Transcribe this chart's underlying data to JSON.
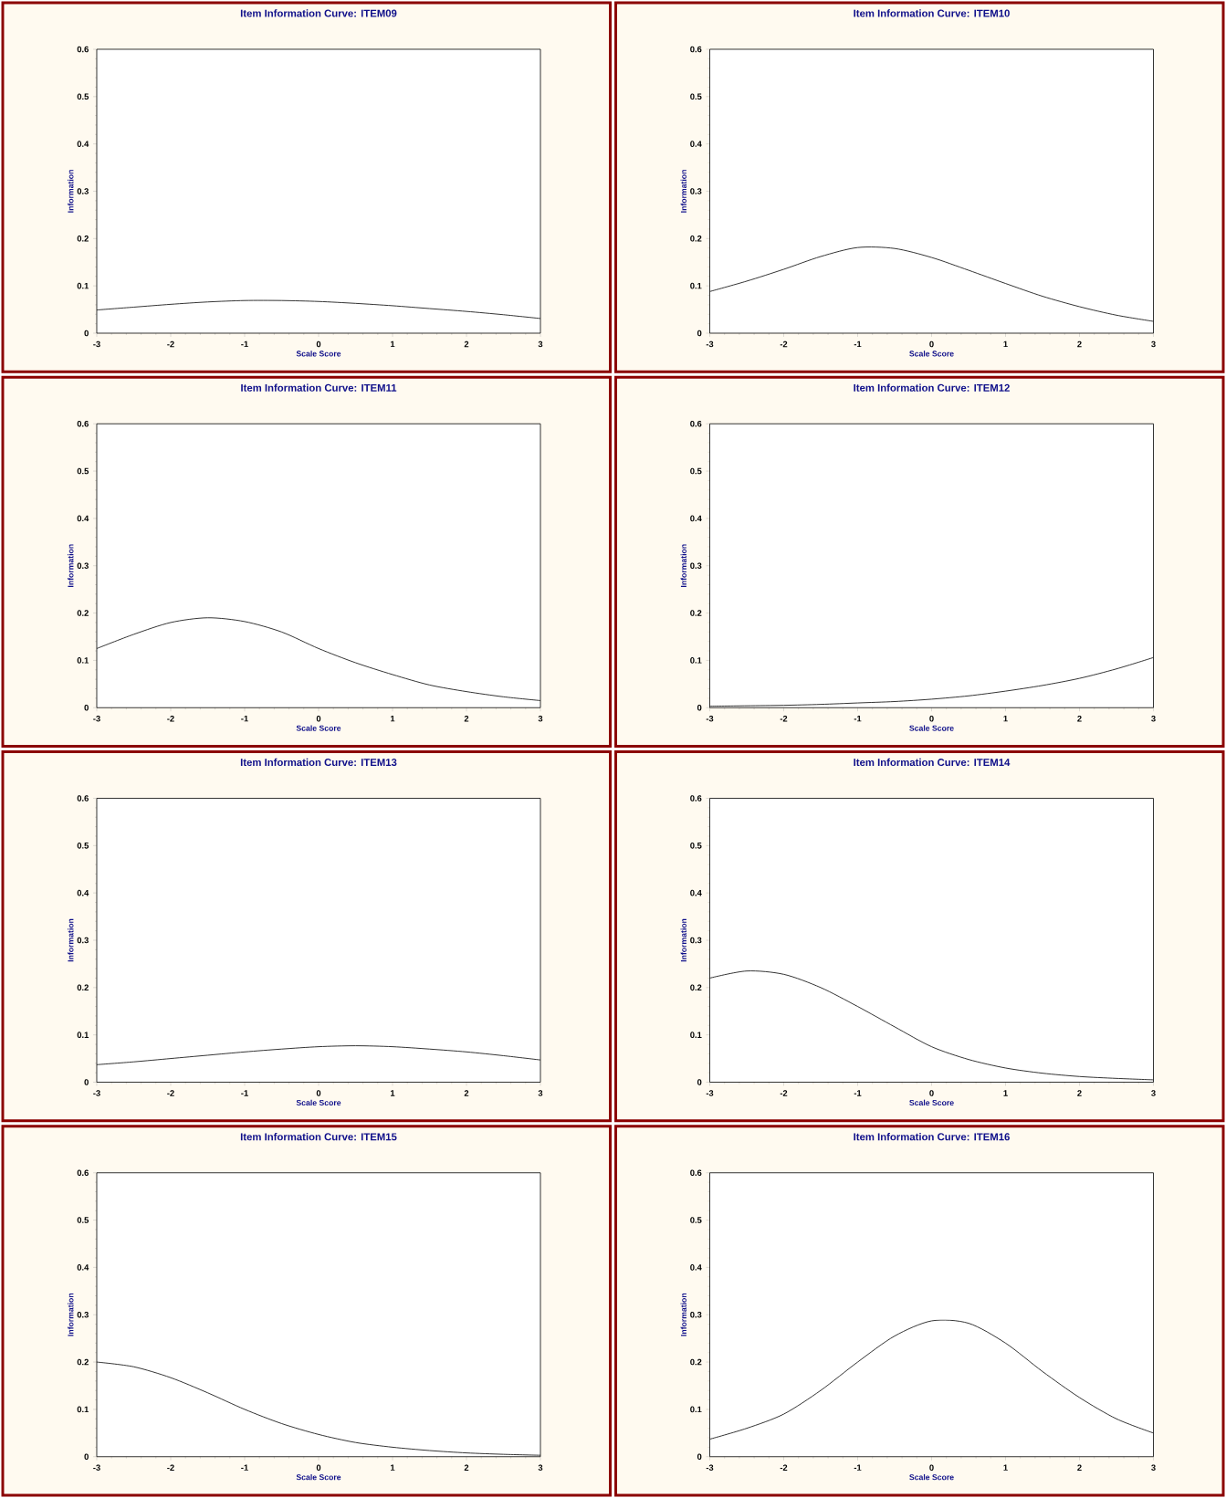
{
  "chart_data": [
    {
      "type": "line",
      "title": "Item Information Curve: ITEM09",
      "xlabel": "Scale Score",
      "ylabel": "Information",
      "color": "#000000",
      "xlim": [
        -3,
        3
      ],
      "ylim": [
        0,
        0.6
      ],
      "xticks": [
        -3,
        -2,
        -1,
        0,
        1,
        2,
        3
      ],
      "yticks": [
        0,
        0.1,
        0.2,
        0.3,
        0.4,
        0.5,
        0.6
      ],
      "x": [
        -3,
        -2.5,
        -2,
        -1.5,
        -1,
        -0.5,
        0,
        0.5,
        1,
        1.5,
        2,
        2.5,
        3
      ],
      "values": [
        0.049,
        0.055,
        0.061,
        0.066,
        0.069,
        0.069,
        0.067,
        0.063,
        0.058,
        0.052,
        0.046,
        0.039,
        0.031
      ]
    },
    {
      "type": "line",
      "title": "Item Information Curve: ITEM10",
      "xlabel": "Scale Score",
      "ylabel": "Information",
      "color": "#000000",
      "xlim": [
        -3,
        3
      ],
      "ylim": [
        0,
        0.6
      ],
      "xticks": [
        -3,
        -2,
        -1,
        0,
        1,
        2,
        3
      ],
      "yticks": [
        0,
        0.1,
        0.2,
        0.3,
        0.4,
        0.5,
        0.6
      ],
      "x": [
        -3,
        -2.5,
        -2,
        -1.5,
        -1,
        -0.5,
        0,
        0.5,
        1,
        1.5,
        2,
        2.5,
        3
      ],
      "values": [
        0.088,
        0.11,
        0.135,
        0.162,
        0.181,
        0.179,
        0.16,
        0.133,
        0.105,
        0.078,
        0.056,
        0.038,
        0.025
      ]
    },
    {
      "type": "line",
      "title": "Item Information Curve: ITEM11",
      "xlabel": "Scale Score",
      "ylabel": "Information",
      "color": "#000000",
      "xlim": [
        -3,
        3
      ],
      "ylim": [
        0,
        0.6
      ],
      "xticks": [
        -3,
        -2,
        -1,
        0,
        1,
        2,
        3
      ],
      "yticks": [
        0,
        0.1,
        0.2,
        0.3,
        0.4,
        0.5,
        0.6
      ],
      "x": [
        -3,
        -2.5,
        -2,
        -1.5,
        -1,
        -0.5,
        0,
        0.5,
        1,
        1.5,
        2,
        2.5,
        3
      ],
      "values": [
        0.125,
        0.155,
        0.18,
        0.19,
        0.182,
        0.16,
        0.125,
        0.095,
        0.07,
        0.048,
        0.034,
        0.023,
        0.015
      ]
    },
    {
      "type": "line",
      "title": "Item Information Curve: ITEM12",
      "xlabel": "Scale Score",
      "ylabel": "Information",
      "color": "#000000",
      "xlim": [
        -3,
        3
      ],
      "ylim": [
        0,
        0.6
      ],
      "xticks": [
        -3,
        -2,
        -1,
        0,
        1,
        2,
        3
      ],
      "yticks": [
        0,
        0.1,
        0.2,
        0.3,
        0.4,
        0.5,
        0.6
      ],
      "x": [
        -3,
        -2.5,
        -2,
        -1.5,
        -1,
        -0.5,
        0,
        0.5,
        1,
        1.5,
        2,
        2.5,
        3
      ],
      "values": [
        0.003,
        0.004,
        0.005,
        0.007,
        0.01,
        0.013,
        0.018,
        0.025,
        0.035,
        0.047,
        0.062,
        0.082,
        0.106
      ]
    },
    {
      "type": "line",
      "title": "Item Information Curve: ITEM13",
      "xlabel": "Scale Score",
      "ylabel": "Information",
      "color": "#000000",
      "xlim": [
        -3,
        3
      ],
      "ylim": [
        0,
        0.6
      ],
      "xticks": [
        -3,
        -2,
        -1,
        0,
        1,
        2,
        3
      ],
      "yticks": [
        0,
        0.1,
        0.2,
        0.3,
        0.4,
        0.5,
        0.6
      ],
      "x": [
        -3,
        -2.5,
        -2,
        -1.5,
        -1,
        -0.5,
        0,
        0.5,
        1,
        1.5,
        2,
        2.5,
        3
      ],
      "values": [
        0.037,
        0.043,
        0.05,
        0.057,
        0.064,
        0.07,
        0.075,
        0.077,
        0.075,
        0.07,
        0.064,
        0.056,
        0.047
      ]
    },
    {
      "type": "line",
      "title": "Item Information Curve: ITEM14",
      "xlabel": "Scale Score",
      "ylabel": "Information",
      "color": "#000000",
      "xlim": [
        -3,
        3
      ],
      "ylim": [
        0,
        0.6
      ],
      "xticks": [
        -3,
        -2,
        -1,
        0,
        1,
        2,
        3
      ],
      "yticks": [
        0,
        0.1,
        0.2,
        0.3,
        0.4,
        0.5,
        0.6
      ],
      "x": [
        -3,
        -2.5,
        -2,
        -1.5,
        -1,
        -0.5,
        0,
        0.5,
        1,
        1.5,
        2,
        2.5,
        3
      ],
      "values": [
        0.22,
        0.235,
        0.228,
        0.2,
        0.16,
        0.117,
        0.075,
        0.048,
        0.03,
        0.019,
        0.012,
        0.008,
        0.005
      ]
    },
    {
      "type": "line",
      "title": "Item Information Curve: ITEM15",
      "xlabel": "Scale Score",
      "ylabel": "Information",
      "color": "#000000",
      "xlim": [
        -3,
        3
      ],
      "ylim": [
        0,
        0.6
      ],
      "xticks": [
        -3,
        -2,
        -1,
        0,
        1,
        2,
        3
      ],
      "yticks": [
        0,
        0.1,
        0.2,
        0.3,
        0.4,
        0.5,
        0.6
      ],
      "x": [
        -3,
        -2.5,
        -2,
        -1.5,
        -1,
        -0.5,
        0,
        0.5,
        1,
        1.5,
        2,
        2.5,
        3
      ],
      "values": [
        0.2,
        0.19,
        0.167,
        0.135,
        0.1,
        0.07,
        0.047,
        0.03,
        0.02,
        0.013,
        0.008,
        0.005,
        0.003
      ]
    },
    {
      "type": "line",
      "title": "Item Information Curve: ITEM16",
      "xlabel": "Scale Score",
      "ylabel": "Information",
      "color": "#000000",
      "xlim": [
        -3,
        3
      ],
      "ylim": [
        0,
        0.6
      ],
      "xticks": [
        -3,
        -2,
        -1,
        0,
        1,
        2,
        3
      ],
      "yticks": [
        0,
        0.1,
        0.2,
        0.3,
        0.4,
        0.5,
        0.6
      ],
      "x": [
        -3,
        -2.5,
        -2,
        -1.5,
        -1,
        -0.5,
        0,
        0.5,
        1,
        1.5,
        2,
        2.5,
        3
      ],
      "values": [
        0.037,
        0.06,
        0.09,
        0.14,
        0.2,
        0.255,
        0.287,
        0.282,
        0.24,
        0.18,
        0.125,
        0.08,
        0.05
      ]
    }
  ]
}
